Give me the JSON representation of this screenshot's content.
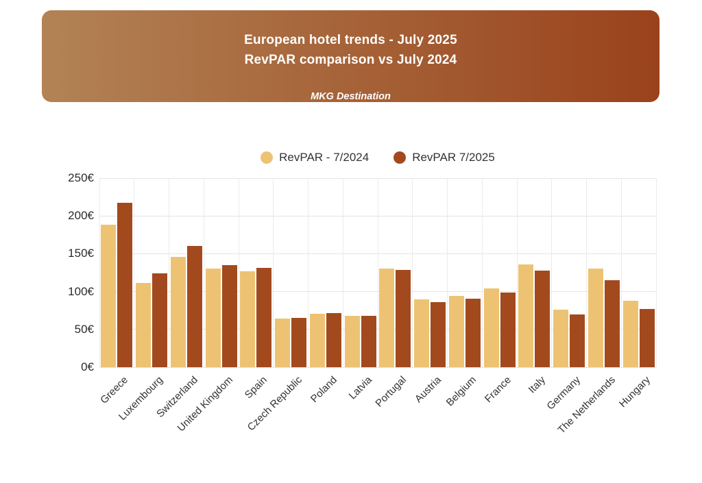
{
  "header": {
    "title_line1": "European hotel trends - July 2025",
    "title_line2": "RevPAR comparison vs July 2024",
    "subtitle": "MKG Destination",
    "gradient_left": "#B28355",
    "gradient_right": "#9A421B",
    "text_color": "#FFFFFF"
  },
  "chart_data": {
    "type": "bar",
    "categories": [
      "Greece",
      "Luxembourg",
      "Switzerland",
      "United Kingdom",
      "Spain",
      "Czech Republic",
      "Poland",
      "Latvia",
      "Portugal",
      "Austria",
      "Belgium",
      "France",
      "Italy",
      "Germany",
      "The Netherlands",
      "Hungary"
    ],
    "series": [
      {
        "name": "RevPAR - 7/2024",
        "color": "#EDC373",
        "values": [
          188,
          111,
          146,
          130,
          127,
          64,
          71,
          68,
          130,
          90,
          94,
          104,
          136,
          76,
          130,
          88
        ]
      },
      {
        "name": "RevPAR 7/2025",
        "color": "#A24A1E",
        "values": [
          217,
          124,
          160,
          135,
          131,
          65,
          72,
          68,
          129,
          86,
          91,
          99,
          128,
          70,
          115,
          77
        ]
      }
    ],
    "title": "",
    "xlabel": "",
    "ylabel": "",
    "yticks": [
      "0€",
      "50€",
      "100€",
      "150€",
      "200€",
      "250€"
    ],
    "ylim": [
      0,
      250
    ],
    "ytick_step": 50,
    "currency": "€",
    "grid": true,
    "legend_position": "top",
    "grid_color": "#e4e4e4",
    "tick_color": "#2b2b2b",
    "label_color": "#333333"
  }
}
